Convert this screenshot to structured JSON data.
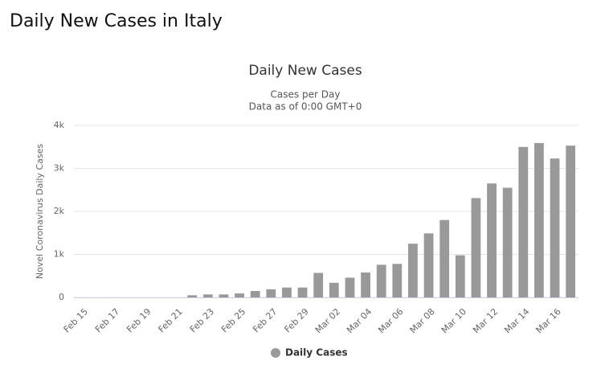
{
  "heading": "Daily New Cases in Italy",
  "chart_data": {
    "type": "bar",
    "title": "Daily New Cases",
    "subtitle": [
      "Cases per Day",
      "Data as of 0:00 GMT+0"
    ],
    "y_label": "Novel Coronavirus Daily Cases",
    "categories": [
      "Feb 15",
      null,
      "Feb 17",
      null,
      "Feb 19",
      null,
      "Feb 21",
      null,
      "Feb 23",
      null,
      "Feb 25",
      null,
      "Feb 27",
      null,
      "Feb 29",
      null,
      "Mar 02",
      null,
      "Mar 04",
      null,
      "Mar 06",
      null,
      "Mar 08",
      null,
      "Mar 10",
      null,
      "Mar 12",
      null,
      "Mar 14",
      null,
      "Mar 16",
      null
    ],
    "series": [
      {
        "name": "Daily Cases",
        "color": "#999999",
        "values": [
          0,
          0,
          0,
          0,
          0,
          0,
          0,
          50,
          70,
          70,
          93,
          150,
          190,
          230,
          230,
          570,
          340,
          460,
          580,
          760,
          780,
          1250,
          1490,
          1800,
          980,
          2310,
          2650,
          2550,
          3500,
          3590,
          3230,
          3530
        ]
      }
    ],
    "ylim": [
      0,
      4000
    ],
    "yticks": [
      0,
      {
        "value": 1000,
        "label": "1k"
      },
      {
        "value": 2000,
        "label": "2k"
      },
      {
        "value": 3000,
        "label": "3k"
      },
      {
        "value": 4000,
        "label": "4k"
      }
    ],
    "grid": true,
    "legend": "bottom"
  }
}
